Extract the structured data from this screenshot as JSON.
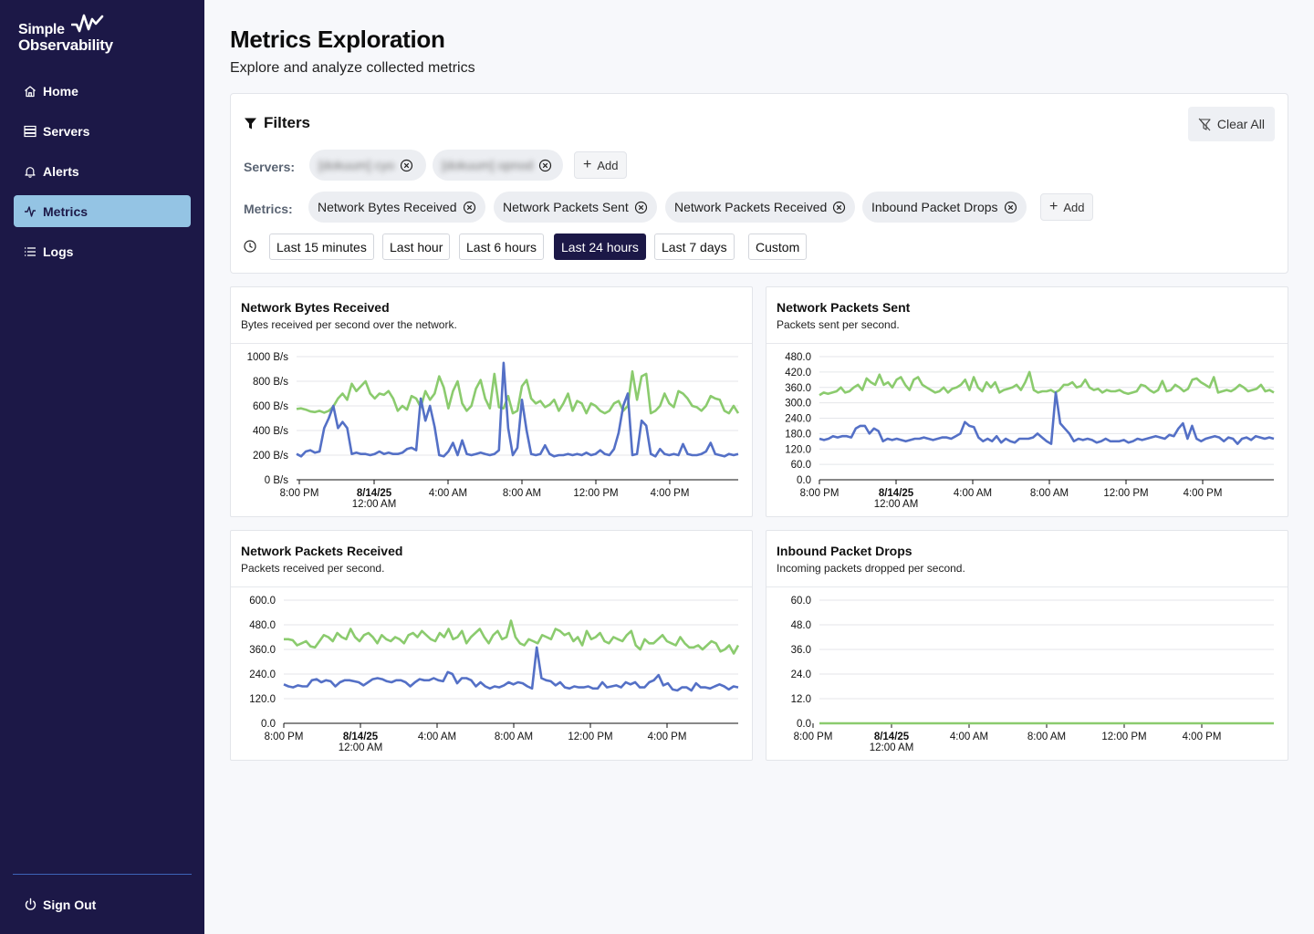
{
  "app": {
    "logo_line1": "Simple",
    "logo_line2": "Observability"
  },
  "sidebar": {
    "items": [
      {
        "label": "Home",
        "icon": "home-icon"
      },
      {
        "label": "Servers",
        "icon": "server-icon"
      },
      {
        "label": "Alerts",
        "icon": "bell-icon"
      },
      {
        "label": "Metrics",
        "icon": "activity-icon",
        "active": true
      },
      {
        "label": "Logs",
        "icon": "list-icon"
      }
    ],
    "signout_label": "Sign Out"
  },
  "header": {
    "title": "Metrics Exploration",
    "subtitle": "Explore and analyze collected metrics"
  },
  "filters": {
    "title": "Filters",
    "clear_all_label": "Clear All",
    "servers_label": "Servers:",
    "servers": [
      "[dokuum] cyo",
      "[dokuum] opnod"
    ],
    "metrics_label": "Metrics:",
    "metrics": [
      "Network Bytes Received",
      "Network Packets Sent",
      "Network Packets Received",
      "Inbound Packet Drops"
    ],
    "add_label": "Add",
    "time_ranges": [
      "Last 15 minutes",
      "Last hour",
      "Last 6 hours",
      "Last 24 hours",
      "Last 7 days",
      "Custom"
    ],
    "selected_time_range": "Last 24 hours"
  },
  "colors": {
    "sidebar_bg": "#1c1847",
    "active_nav": "#94c4e4",
    "series_green": "#8bcb6e",
    "series_blue": "#5470c6"
  },
  "chart_data": [
    {
      "type": "line",
      "title": "Network Bytes Received",
      "subtitle": "Bytes received per second over the network.",
      "x_ticks": [
        "8:00 PM",
        "8/14/25",
        "4:00 AM",
        "8:00 AM",
        "12:00 PM",
        "4:00 PM"
      ],
      "x_tick_sublabel": "12:00 AM",
      "y_ticks": [
        "0 B/s",
        "200 B/s",
        "400 B/s",
        "600 B/s",
        "800 B/s",
        "1000 B/s"
      ],
      "ylim": [
        0,
        1000
      ],
      "grid": true,
      "series": [
        {
          "color": "#8bcb6e",
          "values": [
            575,
            580,
            570,
            555,
            550,
            560,
            545,
            560,
            595,
            660,
            700,
            650,
            780,
            720,
            760,
            800,
            700,
            660,
            700,
            690,
            720,
            660,
            560,
            600,
            570,
            680,
            660,
            590,
            720,
            650,
            700,
            840,
            750,
            580,
            720,
            800,
            620,
            560,
            600,
            740,
            810,
            660,
            580,
            860,
            590,
            580,
            680,
            540,
            560,
            760,
            810,
            660,
            620,
            640,
            590,
            610,
            650,
            560,
            620,
            700,
            560,
            640,
            620,
            540,
            620,
            600,
            560,
            540,
            560,
            620,
            640,
            560,
            600,
            880,
            650,
            840,
            860,
            540,
            560,
            600,
            700,
            620,
            590,
            720,
            700,
            660,
            600,
            590,
            560,
            600,
            680,
            660,
            650,
            560,
            540,
            600,
            540
          ]
        },
        {
          "color": "#5470c6",
          "values": [
            210,
            190,
            230,
            240,
            220,
            230,
            420,
            500,
            600,
            420,
            470,
            420,
            210,
            220,
            210,
            210,
            200,
            210,
            230,
            210,
            220,
            210,
            210,
            220,
            250,
            260,
            240,
            660,
            480,
            600,
            430,
            200,
            190,
            230,
            300,
            200,
            320,
            210,
            200,
            210,
            220,
            210,
            200,
            210,
            240,
            950,
            420,
            200,
            260,
            650,
            400,
            210,
            200,
            210,
            280,
            210,
            190,
            200,
            200,
            210,
            200,
            210,
            200,
            220,
            200,
            210,
            240,
            210,
            200,
            250,
            380,
            600,
            700,
            200,
            210,
            480,
            440,
            210,
            190,
            250,
            210,
            200,
            210,
            200,
            290,
            210,
            200,
            200,
            210,
            230,
            300,
            210,
            200,
            190,
            210,
            200,
            210
          ]
        }
      ]
    },
    {
      "type": "line",
      "title": "Network Packets Sent",
      "subtitle": "Packets sent per second.",
      "x_ticks": [
        "8:00 PM",
        "8/14/25",
        "4:00 AM",
        "8:00 AM",
        "12:00 PM",
        "4:00 PM"
      ],
      "x_tick_sublabel": "12:00 AM",
      "y_ticks": [
        "0.0",
        "60.0",
        "120.0",
        "180.0",
        "240.0",
        "300.0",
        "360.0",
        "420.0",
        "480.0"
      ],
      "ylim": [
        0,
        480
      ],
      "grid": true,
      "series": [
        {
          "color": "#8bcb6e",
          "values": [
            330,
            340,
            335,
            340,
            345,
            360,
            340,
            345,
            360,
            370,
            350,
            395,
            380,
            370,
            410,
            370,
            380,
            360,
            390,
            400,
            370,
            350,
            390,
            400,
            370,
            360,
            350,
            340,
            345,
            360,
            340,
            355,
            360,
            370,
            390,
            350,
            400,
            360,
            345,
            380,
            360,
            380,
            340,
            350,
            355,
            360,
            370,
            350,
            380,
            420,
            350,
            340,
            345,
            345,
            350,
            340,
            350,
            370,
            370,
            380,
            360,
            365,
            390,
            360,
            350,
            355,
            340,
            350,
            345,
            345,
            350,
            340,
            335,
            340,
            345,
            370,
            365,
            350,
            340,
            350,
            385,
            345,
            350,
            370,
            360,
            345,
            355,
            390,
            395,
            380,
            370,
            360,
            400,
            340,
            345,
            350,
            345,
            355,
            370,
            360,
            345,
            350,
            355,
            370,
            345,
            350,
            340
          ]
        },
        {
          "color": "#5470c6",
          "values": [
            160,
            155,
            160,
            170,
            165,
            170,
            170,
            165,
            200,
            210,
            210,
            180,
            200,
            190,
            150,
            160,
            155,
            160,
            155,
            150,
            155,
            160,
            160,
            165,
            160,
            155,
            160,
            165,
            165,
            160,
            170,
            180,
            225,
            210,
            205,
            165,
            150,
            160,
            150,
            170,
            145,
            160,
            150,
            145,
            160,
            160,
            160,
            165,
            180,
            165,
            150,
            140,
            340,
            220,
            200,
            180,
            150,
            160,
            155,
            160,
            155,
            145,
            150,
            160,
            150,
            150,
            150,
            155,
            145,
            150,
            160,
            155,
            160,
            165,
            170,
            165,
            160,
            175,
            170,
            200,
            220,
            160,
            210,
            160,
            150,
            160,
            165,
            170,
            165,
            150,
            165,
            160,
            140,
            160,
            165,
            155,
            170,
            165,
            160,
            165,
            160
          ]
        }
      ]
    },
    {
      "type": "line",
      "title": "Network Packets Received",
      "subtitle": "Packets received per second.",
      "x_ticks": [
        "8:00 PM",
        "8/14/25",
        "4:00 AM",
        "8:00 AM",
        "12:00 PM",
        "4:00 PM"
      ],
      "x_tick_sublabel": "12:00 AM",
      "y_ticks": [
        "0.0",
        "120.0",
        "240.0",
        "360.0",
        "480.0",
        "600.0"
      ],
      "ylim": [
        0,
        600
      ],
      "grid": true,
      "series": [
        {
          "color": "#8bcb6e",
          "values": [
            410,
            410,
            405,
            380,
            390,
            400,
            375,
            370,
            400,
            430,
            420,
            400,
            440,
            420,
            410,
            460,
            420,
            400,
            430,
            440,
            420,
            390,
            430,
            410,
            400,
            420,
            410,
            390,
            430,
            440,
            420,
            450,
            430,
            410,
            400,
            440,
            420,
            460,
            410,
            420,
            450,
            390,
            420,
            440,
            460,
            420,
            390,
            430,
            450,
            410,
            420,
            500,
            420,
            390,
            380,
            410,
            400,
            390,
            430,
            420,
            410,
            460,
            450,
            430,
            440,
            400,
            420,
            380,
            450,
            410,
            420,
            440,
            400,
            390,
            420,
            410,
            400,
            430,
            450,
            380,
            360,
            410,
            390,
            390,
            410,
            430,
            400,
            390,
            380,
            420,
            390,
            370,
            370,
            380,
            360,
            380,
            400,
            390,
            350,
            360,
            380,
            340,
            380
          ]
        },
        {
          "color": "#5470c6",
          "values": [
            190,
            180,
            175,
            185,
            180,
            180,
            210,
            215,
            200,
            210,
            205,
            180,
            200,
            210,
            210,
            205,
            200,
            185,
            200,
            215,
            220,
            215,
            205,
            200,
            210,
            210,
            200,
            180,
            200,
            215,
            210,
            210,
            220,
            210,
            205,
            250,
            240,
            195,
            220,
            220,
            210,
            180,
            200,
            180,
            170,
            180,
            175,
            185,
            200,
            190,
            200,
            195,
            180,
            170,
            370,
            220,
            210,
            205,
            185,
            200,
            175,
            170,
            180,
            175,
            175,
            180,
            170,
            170,
            200,
            175,
            180,
            185,
            175,
            200,
            190,
            200,
            175,
            175,
            200,
            210,
            235,
            185,
            195,
            165,
            160,
            175,
            175,
            160,
            195,
            175,
            175,
            170,
            180,
            190,
            180,
            165,
            180,
            175
          ]
        }
      ]
    },
    {
      "type": "line",
      "title": "Inbound Packet Drops",
      "subtitle": "Incoming packets dropped per second.",
      "x_ticks": [
        "8:00 PM",
        "8/14/25",
        "4:00 AM",
        "8:00 AM",
        "12:00 PM",
        "4:00 PM"
      ],
      "x_tick_sublabel": "12:00 AM",
      "y_ticks": [
        "0.0",
        "12.0",
        "24.0",
        "36.0",
        "48.0",
        "60.0"
      ],
      "ylim": [
        0,
        60
      ],
      "grid": true,
      "series": [
        {
          "color": "#8bcb6e",
          "values": [
            0,
            0,
            0,
            0,
            0,
            0,
            0,
            0,
            0,
            0,
            0,
            0,
            0,
            0,
            0,
            0,
            0,
            0,
            0,
            0,
            0
          ]
        }
      ]
    }
  ]
}
